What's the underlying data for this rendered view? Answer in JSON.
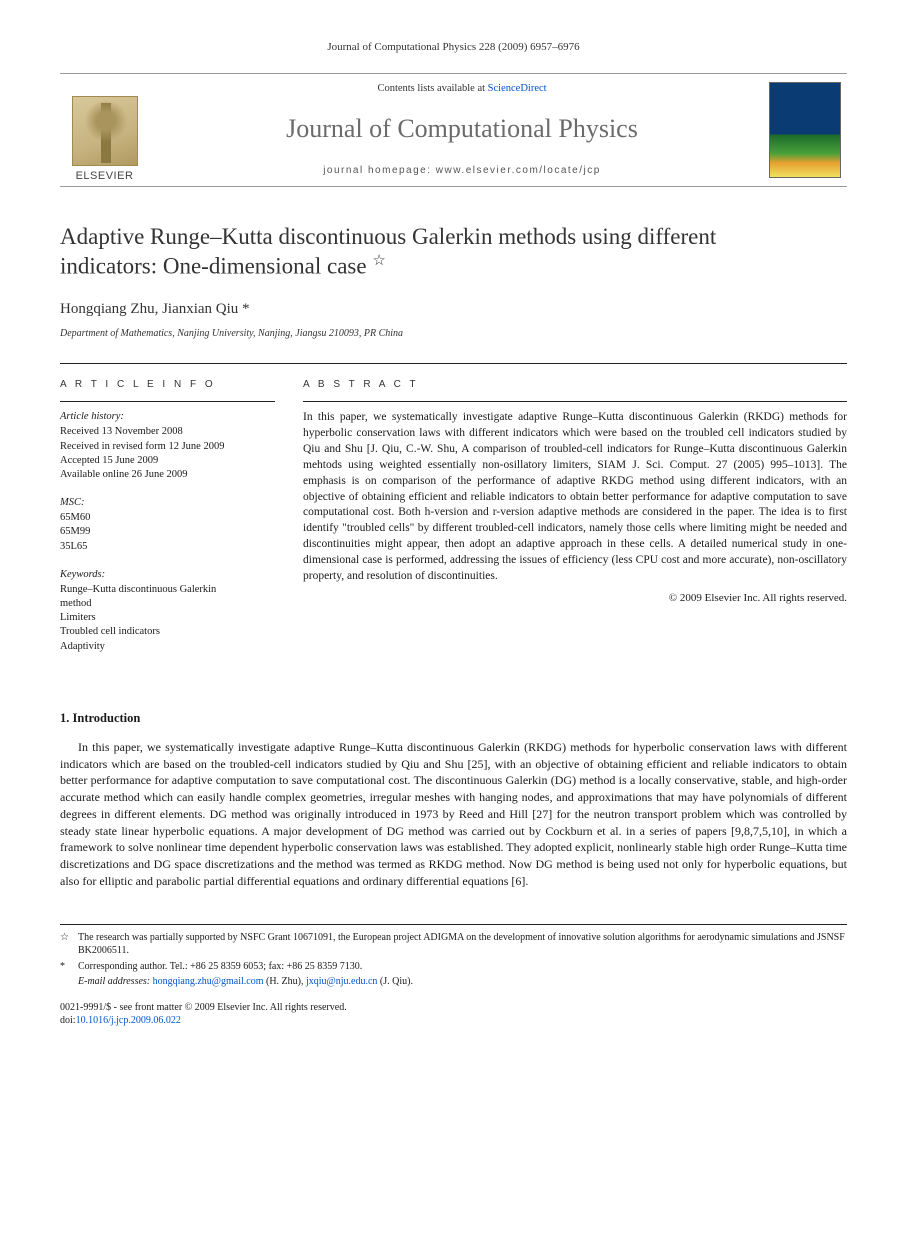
{
  "running_head": "Journal of Computational Physics 228 (2009) 6957–6976",
  "masthead": {
    "contents_prefix": "Contents lists available at ",
    "contents_link": "ScienceDirect",
    "journal_name": "Journal of Computational Physics",
    "homepage_label": "journal homepage: www.elsevier.com/locate/jcp",
    "publisher_logo_text": "ELSEVIER"
  },
  "title_line1": "Adaptive Runge–Kutta discontinuous Galerkin methods using different",
  "title_line2": "indicators: One-dimensional case",
  "title_star": "☆",
  "authors": "Hongqiang Zhu, Jianxian Qiu *",
  "affiliation": "Department of Mathematics, Nanjing University, Nanjing, Jiangsu 210093, PR China",
  "article_info": {
    "heading": "A R T I C L E   I N F O",
    "history_label": "Article history:",
    "history": [
      "Received 13 November 2008",
      "Received in revised form 12 June 2009",
      "Accepted 15 June 2009",
      "Available online 26 June 2009"
    ],
    "msc_label": "MSC:",
    "msc": [
      "65M60",
      "65M99",
      "35L65"
    ],
    "keywords_label": "Keywords:",
    "keywords": [
      "Runge–Kutta discontinuous Galerkin",
      "method",
      "Limiters",
      "Troubled cell indicators",
      "Adaptivity"
    ]
  },
  "abstract": {
    "heading": "A B S T R A C T",
    "text": "In this paper, we systematically investigate adaptive Runge–Kutta discontinuous Galerkin (RKDG) methods for hyperbolic conservation laws with different indicators which were based on the troubled cell indicators studied by Qiu and Shu [J. Qiu, C.-W. Shu, A comparison of troubled-cell indicators for Runge–Kutta discontinuous Galerkin mehtods using weighted essentially non-osillatory limiters, SIAM J. Sci. Comput. 27 (2005) 995–1013]. The emphasis is on comparison of the performance of adaptive RKDG method using different indicators, with an objective of obtaining efficient and reliable indicators to obtain better performance for adaptive computation to save computational cost. Both h-version and r-version adaptive methods are considered in the paper. The idea is to first identify \"troubled cells\" by different troubled-cell indicators, namely those cells where limiting might be needed and discontinuities might appear, then adopt an adaptive approach in these cells. A detailed numerical study in one-dimensional case is performed, addressing the issues of efficiency (less CPU cost and more accurate), non-oscillatory property, and resolution of discontinuities.",
    "copyright": "© 2009 Elsevier Inc. All rights reserved."
  },
  "intro": {
    "heading": "1. Introduction",
    "paragraph": "In this paper, we systematically investigate adaptive Runge–Kutta discontinuous Galerkin (RKDG) methods for hyperbolic conservation laws with different indicators which are based on the troubled-cell indicators studied by Qiu and Shu [25], with an objective of obtaining efficient and reliable indicators to obtain better performance for adaptive computation to save computational cost. The discontinuous Galerkin (DG) method is a locally conservative, stable, and high-order accurate method which can easily handle complex geometries, irregular meshes with hanging nodes, and approximations that may have polynomials of different degrees in different elements. DG method was originally introduced in 1973 by Reed and Hill [27] for the neutron transport problem which was controlled by steady state linear hyperbolic equations. A major development of DG method was carried out by Cockburn et al. in a series of papers [9,8,7,5,10], in which a framework to solve nonlinear time dependent hyperbolic conservation laws was established. They adopted explicit, nonlinearly stable high order Runge–Kutta time discretizations and DG space discretizations and the method was termed as RKDG method. Now DG method is being used not only for hyperbolic equations, but also for elliptic and parabolic partial differential equations and ordinary differential equations [6]."
  },
  "footnotes": {
    "funding_mark": "☆",
    "funding": "The research was partially supported by NSFC Grant 10671091, the European project ADIGMA on the development of innovative solution algorithms for aerodynamic simulations and JSNSF BK2006511.",
    "corr_mark": "*",
    "corr": "Corresponding author. Tel.: +86 25 8359 6053; fax: +86 25 8359 7130.",
    "email_label": "E-mail addresses:",
    "email1": "hongqiang.zhu@gmail.com",
    "email1_who": " (H. Zhu), ",
    "email2": "jxqiu@nju.edu.cn",
    "email2_who": " (J. Qiu)."
  },
  "pubfoot": {
    "line1": "0021-9991/$ - see front matter © 2009 Elsevier Inc. All rights reserved.",
    "doi_label": "doi:",
    "doi": "10.1016/j.jcp.2009.06.022"
  },
  "colors": {
    "text": "#1a1a1a",
    "muted": "#6b6b6b",
    "link": "#0055cc",
    "rule": "#222222",
    "light_rule": "#999999",
    "logo_grad_top": "#d8c89a",
    "logo_grad_bot": "#b09a60",
    "cover_blue": "#0a3b73"
  },
  "typography": {
    "body_pt": 12,
    "title_pt": 23,
    "journal_pt": 26,
    "small_pt": 10,
    "abstract_pt": 11.5
  }
}
